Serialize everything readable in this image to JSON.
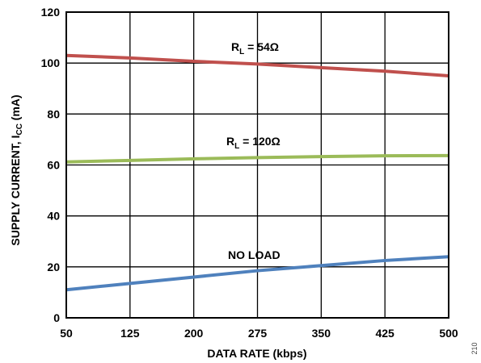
{
  "chart_data": {
    "type": "line",
    "xlabel": "DATA RATE (kbps)",
    "ylabel_main": "SUPPLY CURRENT, I",
    "ylabel_sub": "CC",
    "ylabel_unit": " (mA)",
    "xlim": [
      50,
      500
    ],
    "ylim": [
      0,
      120
    ],
    "xticks": [
      50,
      125,
      200,
      275,
      350,
      425,
      500
    ],
    "yticks": [
      0,
      20,
      40,
      60,
      80,
      100,
      120
    ],
    "grid": true,
    "series": [
      {
        "name": "RL = 54Ω",
        "label_main": "R",
        "label_sub": "L",
        "label_rest": " = 54Ω",
        "color": "#c0504d",
        "x": [
          50,
          125,
          200,
          275,
          350,
          425,
          500
        ],
        "y": [
          103,
          102,
          100.7,
          99.6,
          98.2,
          96.8,
          95
        ]
      },
      {
        "name": "RL = 120Ω",
        "label_main": "R",
        "label_sub": "L",
        "label_rest": " = 120Ω",
        "color": "#9bbb59",
        "x": [
          50,
          125,
          200,
          275,
          350,
          425,
          500
        ],
        "y": [
          61.2,
          61.8,
          62.4,
          62.9,
          63.3,
          63.6,
          63.7
        ]
      },
      {
        "name": "NO LOAD",
        "label_main": "NO LOAD",
        "label_sub": "",
        "label_rest": "",
        "color": "#4f81bd",
        "x": [
          50,
          125,
          200,
          275,
          350,
          425,
          500
        ],
        "y": [
          11,
          13.5,
          16,
          18.5,
          20.5,
          22.5,
          24
        ]
      }
    ],
    "figure_id": "210"
  }
}
